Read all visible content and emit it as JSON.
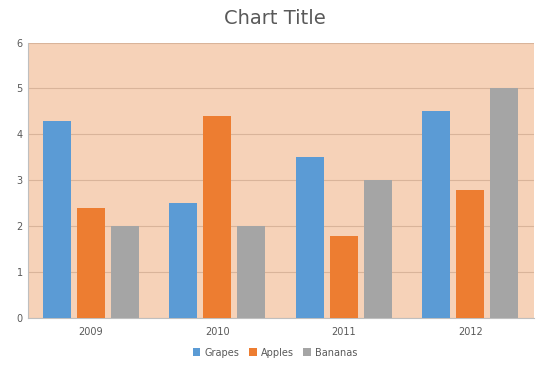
{
  "chart_data": {
    "type": "bar",
    "title": "Chart Title",
    "categories": [
      "2009",
      "2010",
      "2011",
      "2012"
    ],
    "series": [
      {
        "name": "Grapes",
        "color": "#5b9bd5",
        "values": [
          4.3,
          2.5,
          3.5,
          4.5
        ]
      },
      {
        "name": "Apples",
        "color": "#ed7d31",
        "values": [
          2.4,
          4.4,
          1.8,
          2.8
        ]
      },
      {
        "name": "Bananas",
        "color": "#a5a5a5",
        "values": [
          2,
          2,
          3,
          5
        ]
      }
    ],
    "ylim": [
      0,
      6
    ],
    "yticks": [
      0,
      1,
      2,
      3,
      4,
      5,
      6
    ],
    "grid": true,
    "legend": "lower center"
  }
}
